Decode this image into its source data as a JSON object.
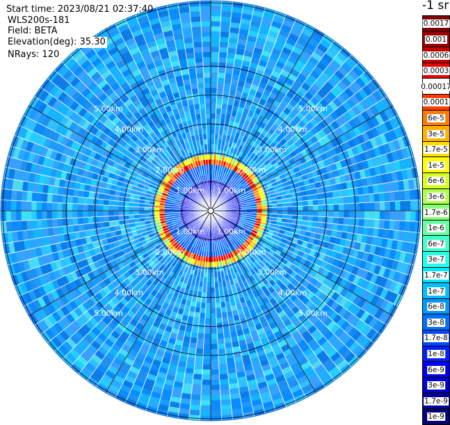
{
  "header": {
    "start_time": "Start time: 2023/08/21 02:37:40",
    "device": "WLS200s-181",
    "field": "Field: BETA",
    "elevation": "Elevation(deg): 35.30",
    "nrays": "NRays: 120"
  },
  "colorbar": {
    "unit": "-1 sr",
    "labels": [
      "0.0017",
      "0.001",
      "0.0006",
      "0.0003",
      "0.00017",
      "0.0001",
      "6e-5",
      "3e-5",
      "1.7e-5",
      "1e-5",
      "6e-6",
      "3e-6",
      "1.7e-6",
      "1e-6",
      "6e-7",
      "3e-7",
      "1.7e-7",
      "1e-7",
      "6e-8",
      "3e-8",
      "1.7e-8",
      "1e-8",
      "6e-9",
      "3e-9",
      "1.7e-9",
      "1e-9"
    ],
    "colors": [
      "#7f0000",
      "#9d0000",
      "#c40000",
      "#ee0000",
      "#ffffff",
      "#ff3b00",
      "#ff7a00",
      "#ffb000",
      "#ffe000",
      "#ffff00",
      "#d8ff20",
      "#b0ff50",
      "#88ff78",
      "#66ffa0",
      "#40ffc8",
      "#20ffe8",
      "#00e8ff",
      "#00c0ff",
      "#0098ff",
      "#0070ff",
      "#0048ff",
      "#0020ff",
      "#0000f0",
      "#0000c8",
      "#00009a",
      "#000070"
    ]
  },
  "chart_data": {
    "type": "heatmap",
    "projection": "polar (PPI scan)",
    "field": "BETA",
    "elevation_deg": 35.3,
    "n_rays": 120,
    "range_ring_labels": [
      "1.00km",
      "2.00km",
      "3.00km",
      "4.00km",
      "5.00km"
    ],
    "range_rings_km": [
      1,
      2,
      3,
      4,
      5
    ],
    "max_range_km": 6.15,
    "rings_km": [
      {
        "r_km": 0.5,
        "beta": "1e-9 to 1e-8"
      },
      {
        "r_km": 1.2,
        "beta": "1e-8 to 6e-8"
      },
      {
        "r_km": 1.45,
        "beta": "0.0003 to 0.001"
      },
      {
        "r_km": 1.65,
        "beta": "6e-5 to 1e-5"
      },
      {
        "r_km": 3.0,
        "beta": "3e-8 to 1e-7"
      },
      {
        "r_km": 5.5,
        "beta": "3e-8 to 1e-7"
      }
    ]
  }
}
